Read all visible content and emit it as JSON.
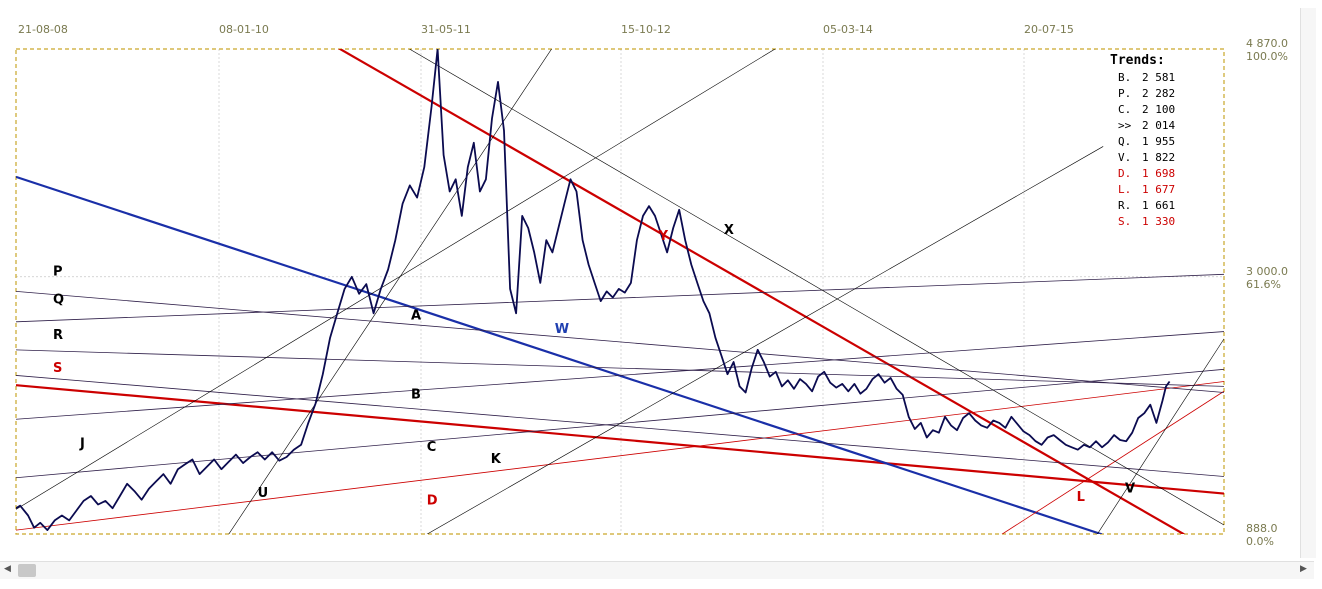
{
  "chart_data": {
    "type": "line",
    "x_tick_labels": [
      "21-08-08",
      "08-01-10",
      "31-05-11",
      "15-10-12",
      "05-03-14",
      "20-07-15"
    ],
    "y_levels": [
      {
        "value": "4 870.0",
        "pct": "100.0%"
      },
      {
        "value": "3 000.0",
        "pct": "61.6%"
      },
      {
        "value": "888.0",
        "pct": "0.0%"
      }
    ],
    "ylim": [
      888,
      4870
    ],
    "price_series": [
      [
        0.0,
        1100
      ],
      [
        0.35,
        1120
      ],
      [
        1.0,
        1040
      ],
      [
        1.5,
        940
      ],
      [
        2.0,
        980
      ],
      [
        2.6,
        920
      ],
      [
        3.2,
        1000
      ],
      [
        3.8,
        1040
      ],
      [
        4.4,
        1000
      ],
      [
        5.0,
        1080
      ],
      [
        5.6,
        1160
      ],
      [
        6.2,
        1200
      ],
      [
        6.8,
        1130
      ],
      [
        7.4,
        1160
      ],
      [
        8.0,
        1100
      ],
      [
        8.6,
        1200
      ],
      [
        9.2,
        1300
      ],
      [
        9.8,
        1240
      ],
      [
        10.4,
        1170
      ],
      [
        11.0,
        1260
      ],
      [
        11.6,
        1320
      ],
      [
        12.2,
        1380
      ],
      [
        12.8,
        1300
      ],
      [
        13.4,
        1420
      ],
      [
        14.0,
        1460
      ],
      [
        14.6,
        1500
      ],
      [
        15.2,
        1380
      ],
      [
        15.8,
        1440
      ],
      [
        16.4,
        1500
      ],
      [
        17.0,
        1420
      ],
      [
        17.6,
        1480
      ],
      [
        18.2,
        1540
      ],
      [
        18.8,
        1470
      ],
      [
        19.4,
        1520
      ],
      [
        20.0,
        1560
      ],
      [
        20.6,
        1500
      ],
      [
        21.2,
        1560
      ],
      [
        21.8,
        1490
      ],
      [
        22.4,
        1520
      ],
      [
        23.0,
        1580
      ],
      [
        23.6,
        1620
      ],
      [
        24.2,
        1800
      ],
      [
        24.8,
        1960
      ],
      [
        25.4,
        2200
      ],
      [
        26.0,
        2500
      ],
      [
        26.6,
        2700
      ],
      [
        27.2,
        2900
      ],
      [
        27.8,
        3000
      ],
      [
        28.4,
        2860
      ],
      [
        29.0,
        2940
      ],
      [
        29.6,
        2700
      ],
      [
        30.2,
        2900
      ],
      [
        30.8,
        3060
      ],
      [
        31.4,
        3300
      ],
      [
        32.0,
        3600
      ],
      [
        32.6,
        3750
      ],
      [
        33.2,
        3650
      ],
      [
        33.8,
        3900
      ],
      [
        34.4,
        4400
      ],
      [
        34.9,
        4870
      ],
      [
        35.4,
        4000
      ],
      [
        35.9,
        3700
      ],
      [
        36.4,
        3800
      ],
      [
        36.9,
        3500
      ],
      [
        37.4,
        3900
      ],
      [
        37.9,
        4100
      ],
      [
        38.4,
        3700
      ],
      [
        38.9,
        3800
      ],
      [
        39.4,
        4300
      ],
      [
        39.9,
        4600
      ],
      [
        40.4,
        4200
      ],
      [
        40.9,
        2900
      ],
      [
        41.4,
        2700
      ],
      [
        41.9,
        3500
      ],
      [
        42.4,
        3400
      ],
      [
        42.9,
        3200
      ],
      [
        43.4,
        2950
      ],
      [
        43.9,
        3300
      ],
      [
        44.4,
        3200
      ],
      [
        44.9,
        3400
      ],
      [
        45.4,
        3600
      ],
      [
        45.9,
        3800
      ],
      [
        46.4,
        3700
      ],
      [
        46.9,
        3300
      ],
      [
        47.4,
        3100
      ],
      [
        47.9,
        2950
      ],
      [
        48.4,
        2800
      ],
      [
        48.9,
        2880
      ],
      [
        49.4,
        2830
      ],
      [
        49.9,
        2900
      ],
      [
        50.4,
        2870
      ],
      [
        50.9,
        2950
      ],
      [
        51.4,
        3300
      ],
      [
        51.9,
        3500
      ],
      [
        52.4,
        3580
      ],
      [
        52.9,
        3500
      ],
      [
        53.4,
        3350
      ],
      [
        53.9,
        3200
      ],
      [
        54.4,
        3400
      ],
      [
        54.9,
        3550
      ],
      [
        55.4,
        3300
      ],
      [
        55.9,
        3100
      ],
      [
        56.4,
        2950
      ],
      [
        56.9,
        2800
      ],
      [
        57.4,
        2700
      ],
      [
        57.9,
        2500
      ],
      [
        58.4,
        2350
      ],
      [
        58.9,
        2200
      ],
      [
        59.4,
        2300
      ],
      [
        59.9,
        2100
      ],
      [
        60.4,
        2050
      ],
      [
        60.9,
        2250
      ],
      [
        61.4,
        2400
      ],
      [
        61.9,
        2300
      ],
      [
        62.4,
        2180
      ],
      [
        62.9,
        2220
      ],
      [
        63.4,
        2100
      ],
      [
        63.9,
        2150
      ],
      [
        64.4,
        2080
      ],
      [
        64.9,
        2160
      ],
      [
        65.4,
        2120
      ],
      [
        65.9,
        2060
      ],
      [
        66.4,
        2180
      ],
      [
        66.9,
        2220
      ],
      [
        67.4,
        2130
      ],
      [
        67.9,
        2090
      ],
      [
        68.4,
        2120
      ],
      [
        68.9,
        2060
      ],
      [
        69.4,
        2120
      ],
      [
        69.9,
        2040
      ],
      [
        70.4,
        2080
      ],
      [
        70.9,
        2160
      ],
      [
        71.4,
        2200
      ],
      [
        71.9,
        2130
      ],
      [
        72.4,
        2170
      ],
      [
        72.9,
        2080
      ],
      [
        73.4,
        2030
      ],
      [
        73.9,
        1850
      ],
      [
        74.4,
        1750
      ],
      [
        74.9,
        1800
      ],
      [
        75.4,
        1680
      ],
      [
        75.9,
        1740
      ],
      [
        76.4,
        1720
      ],
      [
        76.9,
        1850
      ],
      [
        77.4,
        1780
      ],
      [
        77.9,
        1740
      ],
      [
        78.4,
        1840
      ],
      [
        78.9,
        1880
      ],
      [
        79.4,
        1820
      ],
      [
        79.9,
        1780
      ],
      [
        80.4,
        1760
      ],
      [
        80.9,
        1820
      ],
      [
        81.4,
        1800
      ],
      [
        81.9,
        1760
      ],
      [
        82.4,
        1850
      ],
      [
        82.9,
        1790
      ],
      [
        83.4,
        1730
      ],
      [
        83.9,
        1700
      ],
      [
        84.4,
        1650
      ],
      [
        84.9,
        1620
      ],
      [
        85.4,
        1680
      ],
      [
        85.9,
        1700
      ],
      [
        86.4,
        1660
      ],
      [
        86.9,
        1620
      ],
      [
        87.4,
        1600
      ],
      [
        87.9,
        1580
      ],
      [
        88.4,
        1620
      ],
      [
        88.9,
        1600
      ],
      [
        89.4,
        1650
      ],
      [
        89.9,
        1600
      ],
      [
        90.4,
        1640
      ],
      [
        90.9,
        1700
      ],
      [
        91.4,
        1660
      ],
      [
        91.9,
        1650
      ],
      [
        92.4,
        1720
      ],
      [
        92.9,
        1840
      ],
      [
        93.4,
        1880
      ],
      [
        93.9,
        1950
      ],
      [
        94.4,
        1800
      ],
      [
        94.9,
        1980
      ],
      [
        95.2,
        2100
      ],
      [
        95.5,
        2140
      ]
    ],
    "left_labels": [
      {
        "text": "P",
        "x": 0.0,
        "y": 3010,
        "color": "#000000"
      },
      {
        "text": "Q",
        "x": 0.0,
        "y": 2780,
        "color": "#000000"
      },
      {
        "text": "R",
        "x": 0.0,
        "y": 2490,
        "color": "#000000"
      },
      {
        "text": "S",
        "x": 0.0,
        "y": 2220,
        "color": "#cc0000"
      },
      {
        "text": "J",
        "x": 5.3,
        "y": 1600,
        "color": "#000000"
      }
    ],
    "inner_labels": [
      {
        "text": "A",
        "x": 32.7,
        "y": 2650,
        "color": "#000000"
      },
      {
        "text": "B",
        "x": 32.7,
        "y": 2000,
        "color": "#000000"
      },
      {
        "text": "C",
        "x": 34.0,
        "y": 1570,
        "color": "#000000"
      },
      {
        "text": "D",
        "x": 34.0,
        "y": 1130,
        "color": "#cc0000"
      },
      {
        "text": "K",
        "x": 39.3,
        "y": 1470,
        "color": "#000000"
      },
      {
        "text": "U",
        "x": 20.0,
        "y": 1190,
        "color": "#000000"
      },
      {
        "text": "W",
        "x": 44.6,
        "y": 2540,
        "color": "#1f3fb0"
      },
      {
        "text": "Y",
        "x": 53.2,
        "y": 3300,
        "color": "#cc0000"
      },
      {
        "text": "X",
        "x": 58.6,
        "y": 3350,
        "color": "#000000"
      },
      {
        "text": "L",
        "x": 87.8,
        "y": 1160,
        "color": "#cc0000"
      },
      {
        "text": "V",
        "x": 91.8,
        "y": 1230,
        "color": "#000000"
      }
    ],
    "trend_lines": [
      {
        "name": "S",
        "p1": [
          0,
          2110
        ],
        "p2": [
          100,
          1220
        ],
        "color": "#cc0000",
        "width": 2.2
      },
      {
        "name": "Y",
        "p1": [
          26.3,
          4900
        ],
        "p2": [
          96.7,
          885
        ],
        "color": "#cc0000",
        "width": 2.2
      },
      {
        "name": "W",
        "p1": [
          0,
          3820
        ],
        "p2": [
          89.9,
          885
        ],
        "color": "#1a2fa8",
        "width": 2.2
      },
      {
        "name": "D",
        "p1": [
          0,
          920
        ],
        "p2": [
          100,
          2140
        ],
        "color": "#cc0000",
        "width": 0.8
      },
      {
        "name": "L",
        "p1": [
          81.6,
          885
        ],
        "p2": [
          100,
          2060
        ],
        "color": "#cc0000",
        "width": 0.8
      },
      {
        "name": "P",
        "p1": [
          0,
          2880
        ],
        "p2": [
          100,
          2050
        ],
        "color": "#30204a",
        "width": 0.8
      },
      {
        "name": "Q",
        "p1": [
          0,
          2630
        ],
        "p2": [
          100,
          3020
        ],
        "color": "#30204a",
        "width": 0.8
      },
      {
        "name": "R",
        "p1": [
          0,
          2400
        ],
        "p2": [
          100,
          2100
        ],
        "color": "#30204a",
        "width": 0.8
      },
      {
        "name": "A",
        "p1": [
          0,
          1830
        ],
        "p2": [
          100,
          2550
        ],
        "color": "#30204a",
        "width": 0.8
      },
      {
        "name": "C",
        "p1": [
          0,
          1350
        ],
        "p2": [
          100,
          2240
        ],
        "color": "#30204a",
        "width": 0.8
      },
      {
        "name": "B",
        "p1": [
          0,
          2190
        ],
        "p2": [
          100,
          1360
        ],
        "color": "#30204a",
        "width": 0.8
      },
      {
        "name": "J",
        "p1": [
          0,
          1090
        ],
        "p2": [
          63.0,
          4880
        ],
        "color": "#000000",
        "width": 0.6
      },
      {
        "name": "K",
        "p1": [
          34.0,
          885
        ],
        "p2": [
          90.0,
          4070
        ],
        "color": "#000000",
        "width": 0.6
      },
      {
        "name": "U",
        "p1": [
          17.6,
          885
        ],
        "p2": [
          44.4,
          4880
        ],
        "color": "#000000",
        "width": 0.6
      },
      {
        "name": "X",
        "p1": [
          32.4,
          4880
        ],
        "p2": [
          100,
          962
        ],
        "color": "#000000",
        "width": 0.6
      },
      {
        "name": "V",
        "p1": [
          89.5,
          885
        ],
        "p2": [
          100,
          2490
        ],
        "color": "#000000",
        "width": 0.6
      }
    ],
    "legend_title": "Trends:",
    "legend_entries": [
      {
        "label": "B.",
        "value": "2 581",
        "color": "#000000"
      },
      {
        "label": "P.",
        "value": "2 282",
        "color": "#000000"
      },
      {
        "label": "C.",
        "value": "2 100",
        "color": "#000000"
      },
      {
        "label": ">>",
        "value": "2 014",
        "color": "#000000"
      },
      {
        "label": "Q.",
        "value": "1 955",
        "color": "#000000"
      },
      {
        "label": "V.",
        "value": "1 822",
        "color": "#000000"
      },
      {
        "label": "D.",
        "value": "1 698",
        "color": "#cc0000"
      },
      {
        "label": "L.",
        "value": "1 677",
        "color": "#cc0000"
      },
      {
        "label": "R.",
        "value": "1 661",
        "color": "#000000"
      },
      {
        "label": "S.",
        "value": "1 330",
        "color": "#cc0000"
      }
    ],
    "price_color": "#0b0b50",
    "legend_placement": "top-right",
    "grid": true
  }
}
